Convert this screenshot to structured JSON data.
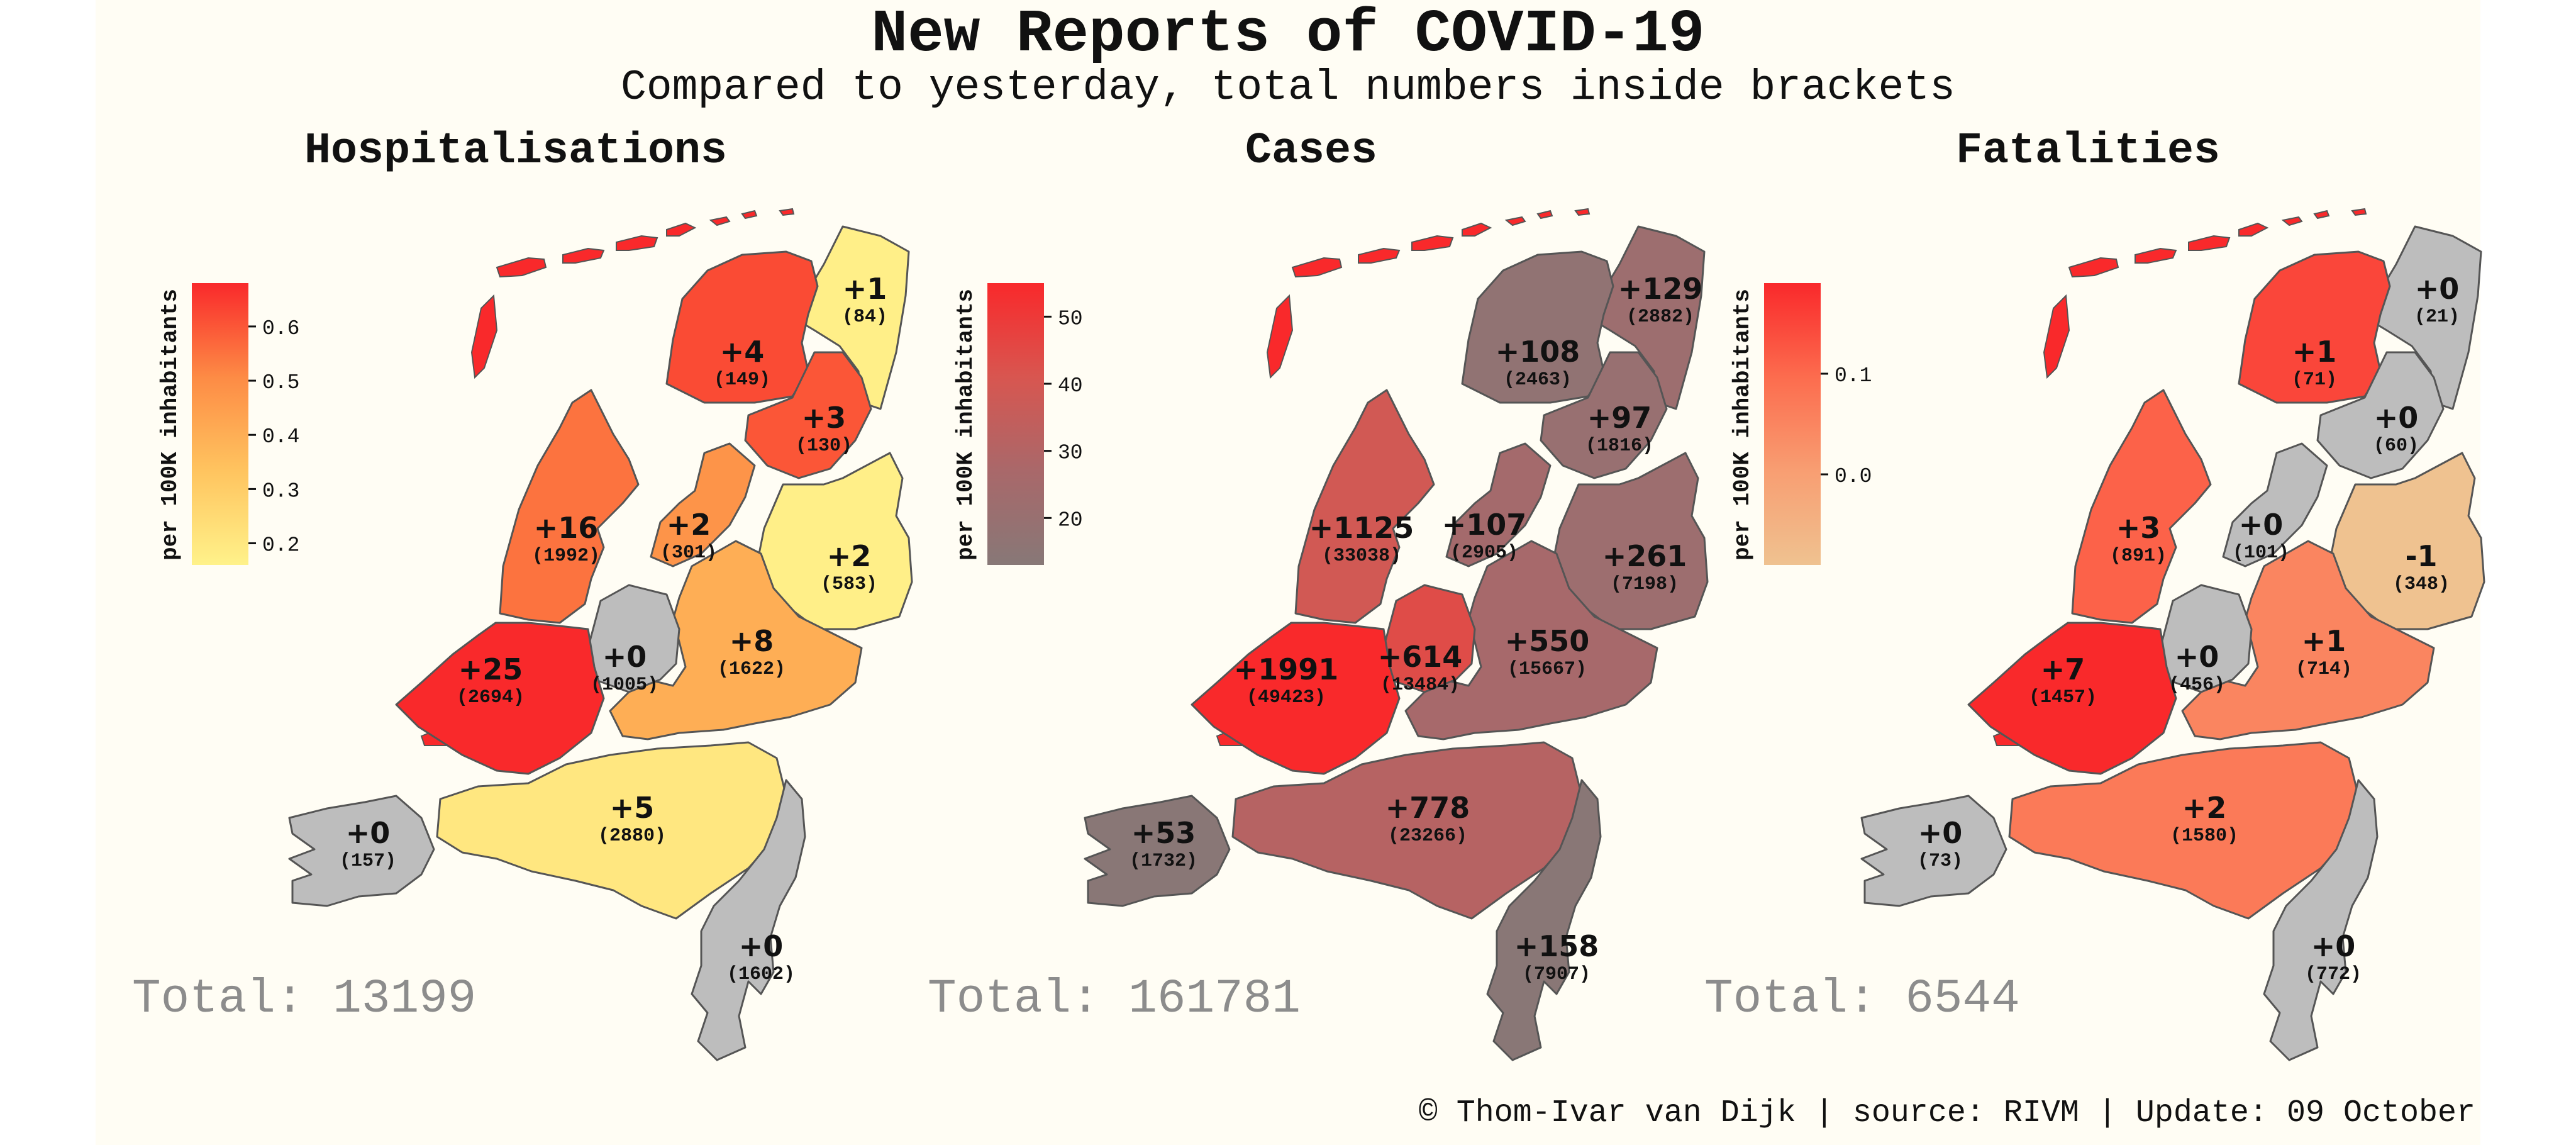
{
  "title": "New Reports of COVID-19",
  "subtitle": "Compared to yesterday, total numbers inside brackets",
  "footer": "© Thom-Ivar van Dijk | source: RIVM | Update: 09 October",
  "chart_data": [
    {
      "type": "choropleth",
      "title": "Hospitalisations",
      "colorbar_label": "per 100K inhabitants",
      "colorbar_ticks": [
        "0.6",
        "0.5",
        "0.4",
        "0.3",
        "0.2"
      ],
      "colorbar_range": [
        0.16,
        0.68
      ],
      "colorbar_colors": [
        "#fff28a",
        "#ffc45f",
        "#fd8b45",
        "#f9292b"
      ],
      "total_label": "Total: 13199",
      "regions": [
        {
          "name": "Groningen",
          "new": "+1",
          "total": "(84)",
          "value": 0.17
        },
        {
          "name": "Friesland",
          "new": "+4",
          "total": "(149)",
          "value": 0.62
        },
        {
          "name": "Drenthe",
          "new": "+3",
          "total": "(130)",
          "value": 0.6
        },
        {
          "name": "Noord-Holland",
          "new": "+16",
          "total": "(1992)",
          "value": 0.55
        },
        {
          "name": "Flevoland",
          "new": "+2",
          "total": "(301)",
          "value": 0.48
        },
        {
          "name": "Overijssel",
          "new": "+2",
          "total": "(583)",
          "value": 0.17
        },
        {
          "name": "Gelderland",
          "new": "+8",
          "total": "(1622)",
          "value": 0.4
        },
        {
          "name": "Utrecht",
          "new": "+0",
          "total": "(1005)",
          "value": null
        },
        {
          "name": "Zuid-Holland",
          "new": "+25",
          "total": "(2694)",
          "value": 0.68
        },
        {
          "name": "Noord-Brabant",
          "new": "+5",
          "total": "(2880)",
          "value": 0.2
        },
        {
          "name": "Zeeland",
          "new": "+0",
          "total": "(157)",
          "value": null
        },
        {
          "name": "Limburg",
          "new": "+0",
          "total": "(1602)",
          "value": null
        }
      ]
    },
    {
      "type": "choropleth",
      "title": "Cases",
      "colorbar_label": "per 100K inhabitants",
      "colorbar_ticks": [
        "50",
        "40",
        "30",
        "20"
      ],
      "colorbar_range": [
        13,
        55
      ],
      "colorbar_colors": [
        "#877877",
        "#a9686a",
        "#d85650",
        "#f9292b"
      ],
      "total_label": "Total: 161781",
      "regions": [
        {
          "name": "Groningen",
          "new": "+129",
          "total": "(2882)",
          "value": 22
        },
        {
          "name": "Friesland",
          "new": "+108",
          "total": "(2463)",
          "value": 17
        },
        {
          "name": "Drenthe",
          "new": "+97",
          "total": "(1816)",
          "value": 20
        },
        {
          "name": "Noord-Holland",
          "new": "+1125",
          "total": "(33038)",
          "value": 39
        },
        {
          "name": "Flevoland",
          "new": "+107",
          "total": "(2905)",
          "value": 25
        },
        {
          "name": "Overijssel",
          "new": "+261",
          "total": "(7198)",
          "value": 22
        },
        {
          "name": "Gelderland",
          "new": "+550",
          "total": "(15667)",
          "value": 26
        },
        {
          "name": "Utrecht",
          "new": "+614",
          "total": "(13484)",
          "value": 44
        },
        {
          "name": "Zuid-Holland",
          "new": "+1991",
          "total": "(49423)",
          "value": 55
        },
        {
          "name": "Noord-Brabant",
          "new": "+778",
          "total": "(23266)",
          "value": 31
        },
        {
          "name": "Zeeland",
          "new": "+53",
          "total": "(1732)",
          "value": 14
        },
        {
          "name": "Limburg",
          "new": "+158",
          "total": "(7907)",
          "value": 14
        }
      ]
    },
    {
      "type": "choropleth",
      "title": "Fatalities",
      "colorbar_label": "per 100K inhabitants",
      "colorbar_ticks": [
        "0.1",
        "0.0"
      ],
      "colorbar_range": [
        -0.09,
        0.19
      ],
      "colorbar_colors": [
        "#efc290",
        "#f89e72",
        "#fc6c4e",
        "#f9292b"
      ],
      "total_label": "Total: 6544",
      "regions": [
        {
          "name": "Groningen",
          "new": "+0",
          "total": "(21)",
          "value": null
        },
        {
          "name": "Friesland",
          "new": "+1",
          "total": "(71)",
          "value": 0.15
        },
        {
          "name": "Drenthe",
          "new": "+0",
          "total": "(60)",
          "value": null
        },
        {
          "name": "Noord-Holland",
          "new": "+3",
          "total": "(891)",
          "value": 0.11
        },
        {
          "name": "Flevoland",
          "new": "+0",
          "total": "(101)",
          "value": null
        },
        {
          "name": "Overijssel",
          "new": "-1",
          "total": "(348)",
          "value": -0.09
        },
        {
          "name": "Gelderland",
          "new": "+1",
          "total": "(714)",
          "value": 0.05
        },
        {
          "name": "Utrecht",
          "new": "+0",
          "total": "(456)",
          "value": null
        },
        {
          "name": "Zuid-Holland",
          "new": "+7",
          "total": "(1457)",
          "value": 0.19
        },
        {
          "name": "Noord-Brabant",
          "new": "+2",
          "total": "(1580)",
          "value": 0.07
        },
        {
          "name": "Zeeland",
          "new": "+0",
          "total": "(73)",
          "value": null
        },
        {
          "name": "Limburg",
          "new": "+0",
          "total": "(772)",
          "value": null
        }
      ]
    }
  ]
}
